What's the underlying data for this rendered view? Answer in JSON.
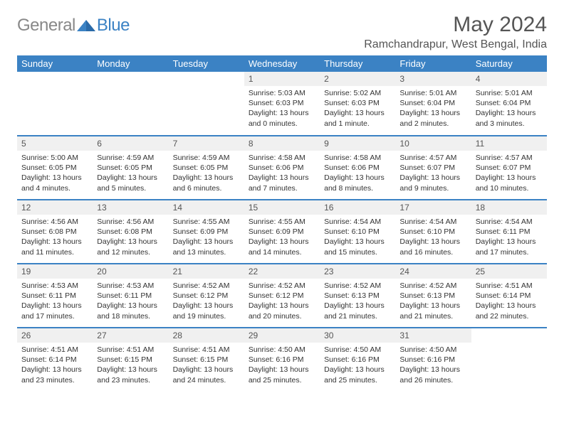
{
  "logo": {
    "part1": "General",
    "part2": "Blue"
  },
  "title": "May 2024",
  "location": "Ramchandrapur, West Bengal, India",
  "colors": {
    "header_bg": "#3b82c4",
    "header_fg": "#ffffff",
    "daynum_bg": "#f0f0f0",
    "text": "#333333",
    "logo_gray": "#888888",
    "logo_blue": "#3b82c4"
  },
  "day_names": [
    "Sunday",
    "Monday",
    "Tuesday",
    "Wednesday",
    "Thursday",
    "Friday",
    "Saturday"
  ],
  "weeks": [
    [
      {
        "n": "",
        "lines": []
      },
      {
        "n": "",
        "lines": []
      },
      {
        "n": "",
        "lines": []
      },
      {
        "n": "1",
        "lines": [
          "Sunrise: 5:03 AM",
          "Sunset: 6:03 PM",
          "Daylight: 13 hours",
          "and 0 minutes."
        ]
      },
      {
        "n": "2",
        "lines": [
          "Sunrise: 5:02 AM",
          "Sunset: 6:03 PM",
          "Daylight: 13 hours",
          "and 1 minute."
        ]
      },
      {
        "n": "3",
        "lines": [
          "Sunrise: 5:01 AM",
          "Sunset: 6:04 PM",
          "Daylight: 13 hours",
          "and 2 minutes."
        ]
      },
      {
        "n": "4",
        "lines": [
          "Sunrise: 5:01 AM",
          "Sunset: 6:04 PM",
          "Daylight: 13 hours",
          "and 3 minutes."
        ]
      }
    ],
    [
      {
        "n": "5",
        "lines": [
          "Sunrise: 5:00 AM",
          "Sunset: 6:05 PM",
          "Daylight: 13 hours",
          "and 4 minutes."
        ]
      },
      {
        "n": "6",
        "lines": [
          "Sunrise: 4:59 AM",
          "Sunset: 6:05 PM",
          "Daylight: 13 hours",
          "and 5 minutes."
        ]
      },
      {
        "n": "7",
        "lines": [
          "Sunrise: 4:59 AM",
          "Sunset: 6:05 PM",
          "Daylight: 13 hours",
          "and 6 minutes."
        ]
      },
      {
        "n": "8",
        "lines": [
          "Sunrise: 4:58 AM",
          "Sunset: 6:06 PM",
          "Daylight: 13 hours",
          "and 7 minutes."
        ]
      },
      {
        "n": "9",
        "lines": [
          "Sunrise: 4:58 AM",
          "Sunset: 6:06 PM",
          "Daylight: 13 hours",
          "and 8 minutes."
        ]
      },
      {
        "n": "10",
        "lines": [
          "Sunrise: 4:57 AM",
          "Sunset: 6:07 PM",
          "Daylight: 13 hours",
          "and 9 minutes."
        ]
      },
      {
        "n": "11",
        "lines": [
          "Sunrise: 4:57 AM",
          "Sunset: 6:07 PM",
          "Daylight: 13 hours",
          "and 10 minutes."
        ]
      }
    ],
    [
      {
        "n": "12",
        "lines": [
          "Sunrise: 4:56 AM",
          "Sunset: 6:08 PM",
          "Daylight: 13 hours",
          "and 11 minutes."
        ]
      },
      {
        "n": "13",
        "lines": [
          "Sunrise: 4:56 AM",
          "Sunset: 6:08 PM",
          "Daylight: 13 hours",
          "and 12 minutes."
        ]
      },
      {
        "n": "14",
        "lines": [
          "Sunrise: 4:55 AM",
          "Sunset: 6:09 PM",
          "Daylight: 13 hours",
          "and 13 minutes."
        ]
      },
      {
        "n": "15",
        "lines": [
          "Sunrise: 4:55 AM",
          "Sunset: 6:09 PM",
          "Daylight: 13 hours",
          "and 14 minutes."
        ]
      },
      {
        "n": "16",
        "lines": [
          "Sunrise: 4:54 AM",
          "Sunset: 6:10 PM",
          "Daylight: 13 hours",
          "and 15 minutes."
        ]
      },
      {
        "n": "17",
        "lines": [
          "Sunrise: 4:54 AM",
          "Sunset: 6:10 PM",
          "Daylight: 13 hours",
          "and 16 minutes."
        ]
      },
      {
        "n": "18",
        "lines": [
          "Sunrise: 4:54 AM",
          "Sunset: 6:11 PM",
          "Daylight: 13 hours",
          "and 17 minutes."
        ]
      }
    ],
    [
      {
        "n": "19",
        "lines": [
          "Sunrise: 4:53 AM",
          "Sunset: 6:11 PM",
          "Daylight: 13 hours",
          "and 17 minutes."
        ]
      },
      {
        "n": "20",
        "lines": [
          "Sunrise: 4:53 AM",
          "Sunset: 6:11 PM",
          "Daylight: 13 hours",
          "and 18 minutes."
        ]
      },
      {
        "n": "21",
        "lines": [
          "Sunrise: 4:52 AM",
          "Sunset: 6:12 PM",
          "Daylight: 13 hours",
          "and 19 minutes."
        ]
      },
      {
        "n": "22",
        "lines": [
          "Sunrise: 4:52 AM",
          "Sunset: 6:12 PM",
          "Daylight: 13 hours",
          "and 20 minutes."
        ]
      },
      {
        "n": "23",
        "lines": [
          "Sunrise: 4:52 AM",
          "Sunset: 6:13 PM",
          "Daylight: 13 hours",
          "and 21 minutes."
        ]
      },
      {
        "n": "24",
        "lines": [
          "Sunrise: 4:52 AM",
          "Sunset: 6:13 PM",
          "Daylight: 13 hours",
          "and 21 minutes."
        ]
      },
      {
        "n": "25",
        "lines": [
          "Sunrise: 4:51 AM",
          "Sunset: 6:14 PM",
          "Daylight: 13 hours",
          "and 22 minutes."
        ]
      }
    ],
    [
      {
        "n": "26",
        "lines": [
          "Sunrise: 4:51 AM",
          "Sunset: 6:14 PM",
          "Daylight: 13 hours",
          "and 23 minutes."
        ]
      },
      {
        "n": "27",
        "lines": [
          "Sunrise: 4:51 AM",
          "Sunset: 6:15 PM",
          "Daylight: 13 hours",
          "and 23 minutes."
        ]
      },
      {
        "n": "28",
        "lines": [
          "Sunrise: 4:51 AM",
          "Sunset: 6:15 PM",
          "Daylight: 13 hours",
          "and 24 minutes."
        ]
      },
      {
        "n": "29",
        "lines": [
          "Sunrise: 4:50 AM",
          "Sunset: 6:16 PM",
          "Daylight: 13 hours",
          "and 25 minutes."
        ]
      },
      {
        "n": "30",
        "lines": [
          "Sunrise: 4:50 AM",
          "Sunset: 6:16 PM",
          "Daylight: 13 hours",
          "and 25 minutes."
        ]
      },
      {
        "n": "31",
        "lines": [
          "Sunrise: 4:50 AM",
          "Sunset: 6:16 PM",
          "Daylight: 13 hours",
          "and 26 minutes."
        ]
      },
      {
        "n": "",
        "lines": []
      }
    ]
  ]
}
